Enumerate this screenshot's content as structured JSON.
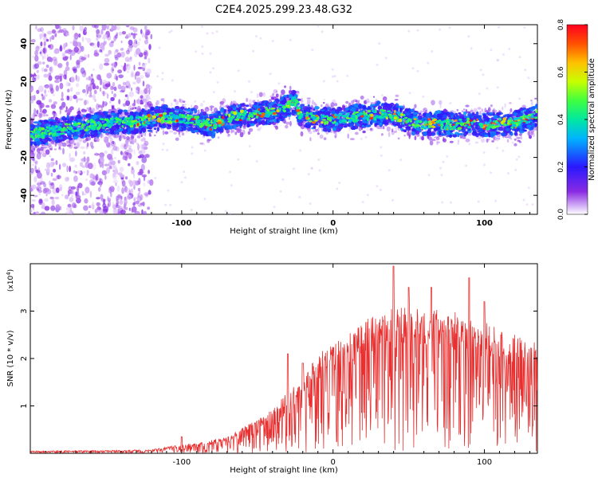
{
  "title": "C2E4.2025.299.23.48.G32",
  "chart_data": [
    {
      "type": "heatmap",
      "title": "C2E4.2025.299.23.48.G32",
      "xlabel": "Height of straight line (km)",
      "ylabel": "Frequency (Hz)",
      "xlim": [
        -200,
        135
      ],
      "ylim": [
        -50,
        50
      ],
      "xticks": [
        -100,
        0,
        100
      ],
      "yticks": [
        -40,
        -20,
        0,
        20,
        40
      ],
      "ridge_points": [
        [
          -200,
          -8
        ],
        [
          -185,
          -6
        ],
        [
          -170,
          -4
        ],
        [
          -150,
          -2
        ],
        [
          -130,
          -1
        ],
        [
          -110,
          1
        ],
        [
          -95,
          0
        ],
        [
          -80,
          -3
        ],
        [
          -70,
          1
        ],
        [
          -60,
          2
        ],
        [
          -50,
          3
        ],
        [
          -40,
          4
        ],
        [
          -30,
          7
        ],
        [
          -25,
          10
        ],
        [
          -22,
          3
        ],
        [
          -15,
          1
        ],
        [
          -5,
          0
        ],
        [
          0,
          0
        ],
        [
          10,
          1
        ],
        [
          20,
          2
        ],
        [
          30,
          3
        ],
        [
          40,
          2
        ],
        [
          50,
          -1
        ],
        [
          60,
          -2
        ],
        [
          70,
          -2
        ],
        [
          80,
          -3
        ],
        [
          90,
          -2
        ],
        [
          100,
          -3
        ],
        [
          110,
          -2
        ],
        [
          120,
          -2
        ],
        [
          130,
          1
        ],
        [
          135,
          2
        ]
      ],
      "colorbar": {
        "label": "Normalized spectral amplitude",
        "range": [
          0,
          0.8
        ],
        "ticks": [
          "0.0",
          "0.2",
          "0.4",
          "0.6",
          "0.8"
        ]
      }
    },
    {
      "type": "line",
      "xlabel": "Height of straight line (km)",
      "ylabel": "SNR (10 * v/v)",
      "y_multiplier": "(x10",
      "y_exponent": "4",
      "y_multiplier_close": ")",
      "xlim": [
        -200,
        135
      ],
      "ylim": [
        0,
        4
      ],
      "xticks": [
        -100,
        0,
        100
      ],
      "yticks": [
        1,
        2,
        3
      ],
      "color": "#e83030",
      "envelope": [
        [
          -200,
          0.05
        ],
        [
          -150,
          0.06
        ],
        [
          -120,
          0.08
        ],
        [
          -100,
          0.18
        ],
        [
          -85,
          0.25
        ],
        [
          -70,
          0.35
        ],
        [
          -60,
          0.55
        ],
        [
          -50,
          0.7
        ],
        [
          -40,
          0.95
        ],
        [
          -30,
          1.3
        ],
        [
          -20,
          1.6
        ],
        [
          -10,
          2.1
        ],
        [
          0,
          2.3
        ],
        [
          20,
          2.8
        ],
        [
          40,
          3.1
        ],
        [
          60,
          3.1
        ],
        [
          80,
          3.0
        ],
        [
          100,
          2.8
        ],
        [
          120,
          2.5
        ],
        [
          135,
          2.4
        ]
      ],
      "spikes": [
        [
          -100,
          0.35
        ],
        [
          -30,
          2.1
        ],
        [
          -20,
          1.9
        ],
        [
          40,
          3.95
        ],
        [
          50,
          3.5
        ],
        [
          65,
          3.5
        ],
        [
          90,
          3.7
        ],
        [
          100,
          3.2
        ]
      ]
    }
  ]
}
